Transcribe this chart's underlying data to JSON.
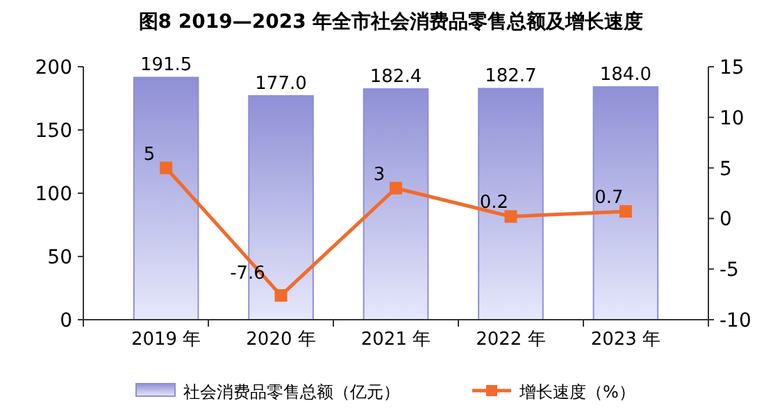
{
  "chart_data": {
    "type": "bar",
    "title": "图8  2019—2023 年全市社会消费品零售总额及增长速度",
    "categories": [
      "2019 年",
      "2020 年",
      "2021 年",
      "2022 年",
      "2023 年"
    ],
    "series": [
      {
        "name": "社会消费品零售总额（亿元）",
        "color": "#8f8fd6",
        "values": [
          191.5,
          177.0,
          182.4,
          182.7,
          184.0
        ],
        "value_labels": [
          "191.5",
          "177.0",
          "182.4",
          "182.7",
          "184.0"
        ]
      },
      {
        "name": "增长速度（%）",
        "type": "line",
        "axis": "y2",
        "color": "#f26b2a",
        "values": [
          5,
          -7.6,
          3,
          0.2,
          0.7
        ],
        "value_labels": [
          "5",
          "-7.6",
          "3",
          "0.2",
          "0.7"
        ]
      }
    ],
    "ylim": [
      0,
      200
    ],
    "yticks": [
      0,
      50,
      100,
      150,
      200
    ],
    "y2lim": [
      -10,
      15
    ],
    "y2ticks": [
      -10,
      -5,
      0,
      5,
      10,
      15
    ],
    "marker": "square",
    "line_style": "solid",
    "legend": "bottom",
    "grid": false
  }
}
